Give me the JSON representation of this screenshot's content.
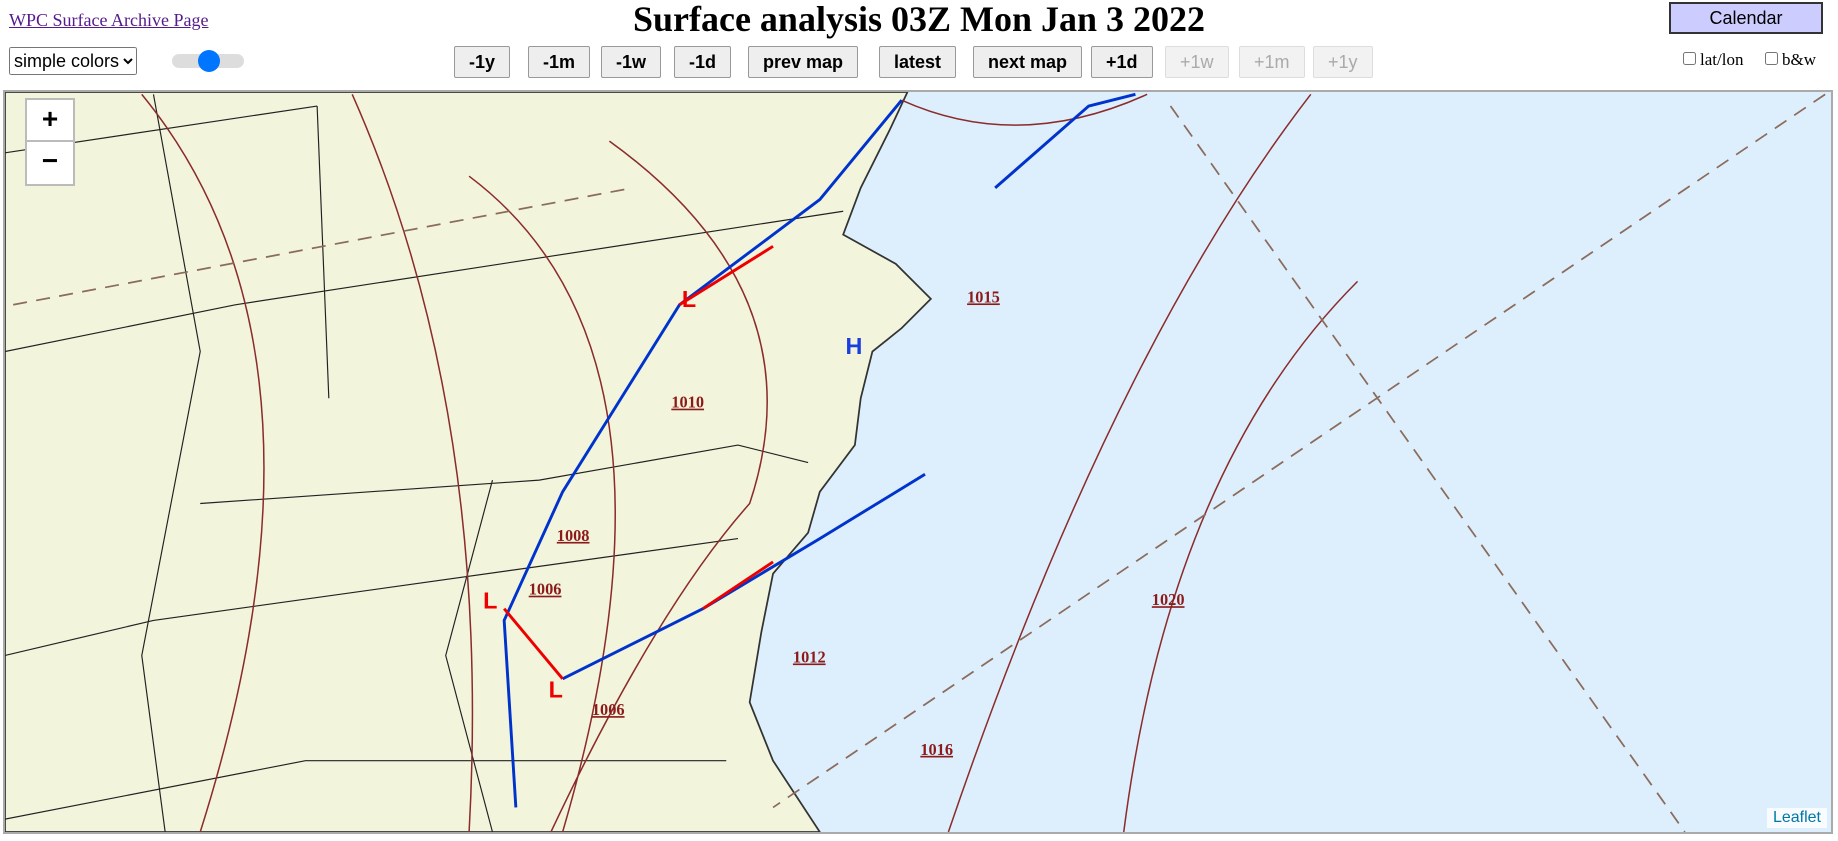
{
  "header": {
    "archive_link": "WPC Surface Archive Page",
    "title": "Surface analysis 03Z Mon Jan 3 2022",
    "calendar": "Calendar",
    "color_mode": "simple colors",
    "nav": [
      "-1y",
      "-1m",
      "-1w",
      "-1d",
      "prev map",
      "latest",
      "next map",
      "+1d",
      "+1w",
      "+1m",
      "+1y"
    ],
    "latlon": "lat/lon",
    "bw": "b&w"
  },
  "map": {
    "zoom_in": "+",
    "zoom_out": "−",
    "attribution": "Leaflet",
    "isobars": [
      "1015",
      "1010",
      "1008",
      "1006",
      "1006",
      "1012",
      "1016",
      "1020"
    ],
    "centers": [
      "H",
      "L",
      "L",
      "L"
    ]
  }
}
